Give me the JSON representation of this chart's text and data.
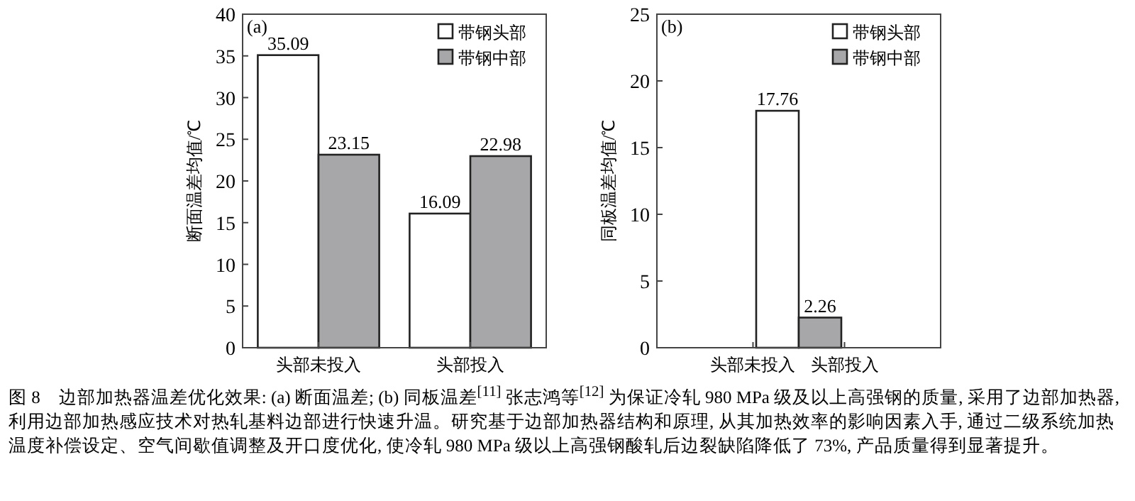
{
  "chart_data": [
    {
      "type": "bar",
      "title": "(a)",
      "ylabel": "断面温差均值/℃",
      "categories": [
        "头部未投入",
        "头部投入"
      ],
      "series": [
        {
          "name": "带钢头部",
          "color": "#ffffff",
          "values": [
            35.09,
            16.09
          ]
        },
        {
          "name": "带钢中部",
          "color": "#a7a7a9",
          "values": [
            23.15,
            22.98
          ]
        }
      ],
      "ylim": [
        0,
        40
      ],
      "yticks": [
        0,
        5,
        10,
        15,
        20,
        25,
        30,
        35,
        40
      ],
      "data_labels": true,
      "legend": "top right",
      "grid": false,
      "annotations": [
        "图 8　边部加热器温差优化效果: (a) 断面温差; (b) 同板温差$^{[11]}$ 张志鸿等$^{[12]}$ 为保证冷轧 980 MPa 级及以上高强钢的质量, 采用了边部加热器, 利用边部加热感应技术对热轧基料边部进行快速升温。研究基于边部加热器结构和原理, 从其加热效率的影响因素入手, 通过二级系统加热温度补偿设定、空气间歇值调整及开口度优化, 使冷轧 980 MPa 级以上高强钢酸轧后边裂缺陷降低了 73%, 产品质量得到显著提升。"
      ]
    },
    {
      "type": "bar",
      "title": "(b)",
      "ylabel": "同板温差均值/℃",
      "categories": [
        "头部未投入",
        "头部投入"
      ],
      "series": [
        {
          "name": "带钢头部",
          "color": "#ffffff",
          "values": [
            17.76,
            null
          ]
        },
        {
          "name": "带钢中部",
          "color": "#a7a7a9",
          "values": [
            null,
            2.26
          ]
        }
      ],
      "ylim": [
        0,
        25
      ],
      "yticks": [
        0,
        5,
        10,
        15,
        20,
        25
      ],
      "data_labels": true,
      "legend": "top right",
      "grid": false
    }
  ]
}
